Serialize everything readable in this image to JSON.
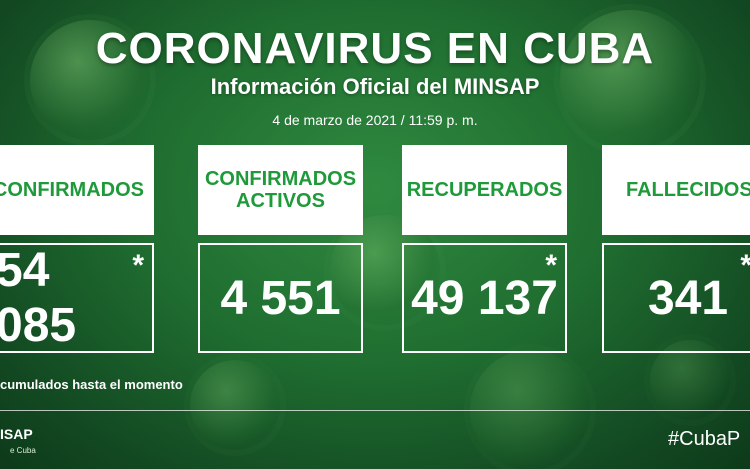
{
  "header": {
    "title": "CORONAVIRUS EN CUBA",
    "subtitle": "Información Oficial del MINSAP",
    "date": "4 de marzo de 2021 / 11:59 p. m."
  },
  "cards": [
    {
      "label": "CONFIRMADOS",
      "value": "54 085",
      "star": "*"
    },
    {
      "label": "CONFIRMADOS\nACTIVOS",
      "value": "4 551",
      "star": ""
    },
    {
      "label": "RECUPERADOS",
      "value": "49 137",
      "star": "*"
    },
    {
      "label": "FALLECIDOS",
      "value": "341",
      "star": "*"
    }
  ],
  "footnote": "cumulados hasta el momento",
  "footer": {
    "logo": "ISAP",
    "logo_sub": "e Cuba",
    "hashtag": "#CubaP"
  },
  "colors": {
    "accent": "#1f9a3a",
    "background": "#1f6d30"
  }
}
